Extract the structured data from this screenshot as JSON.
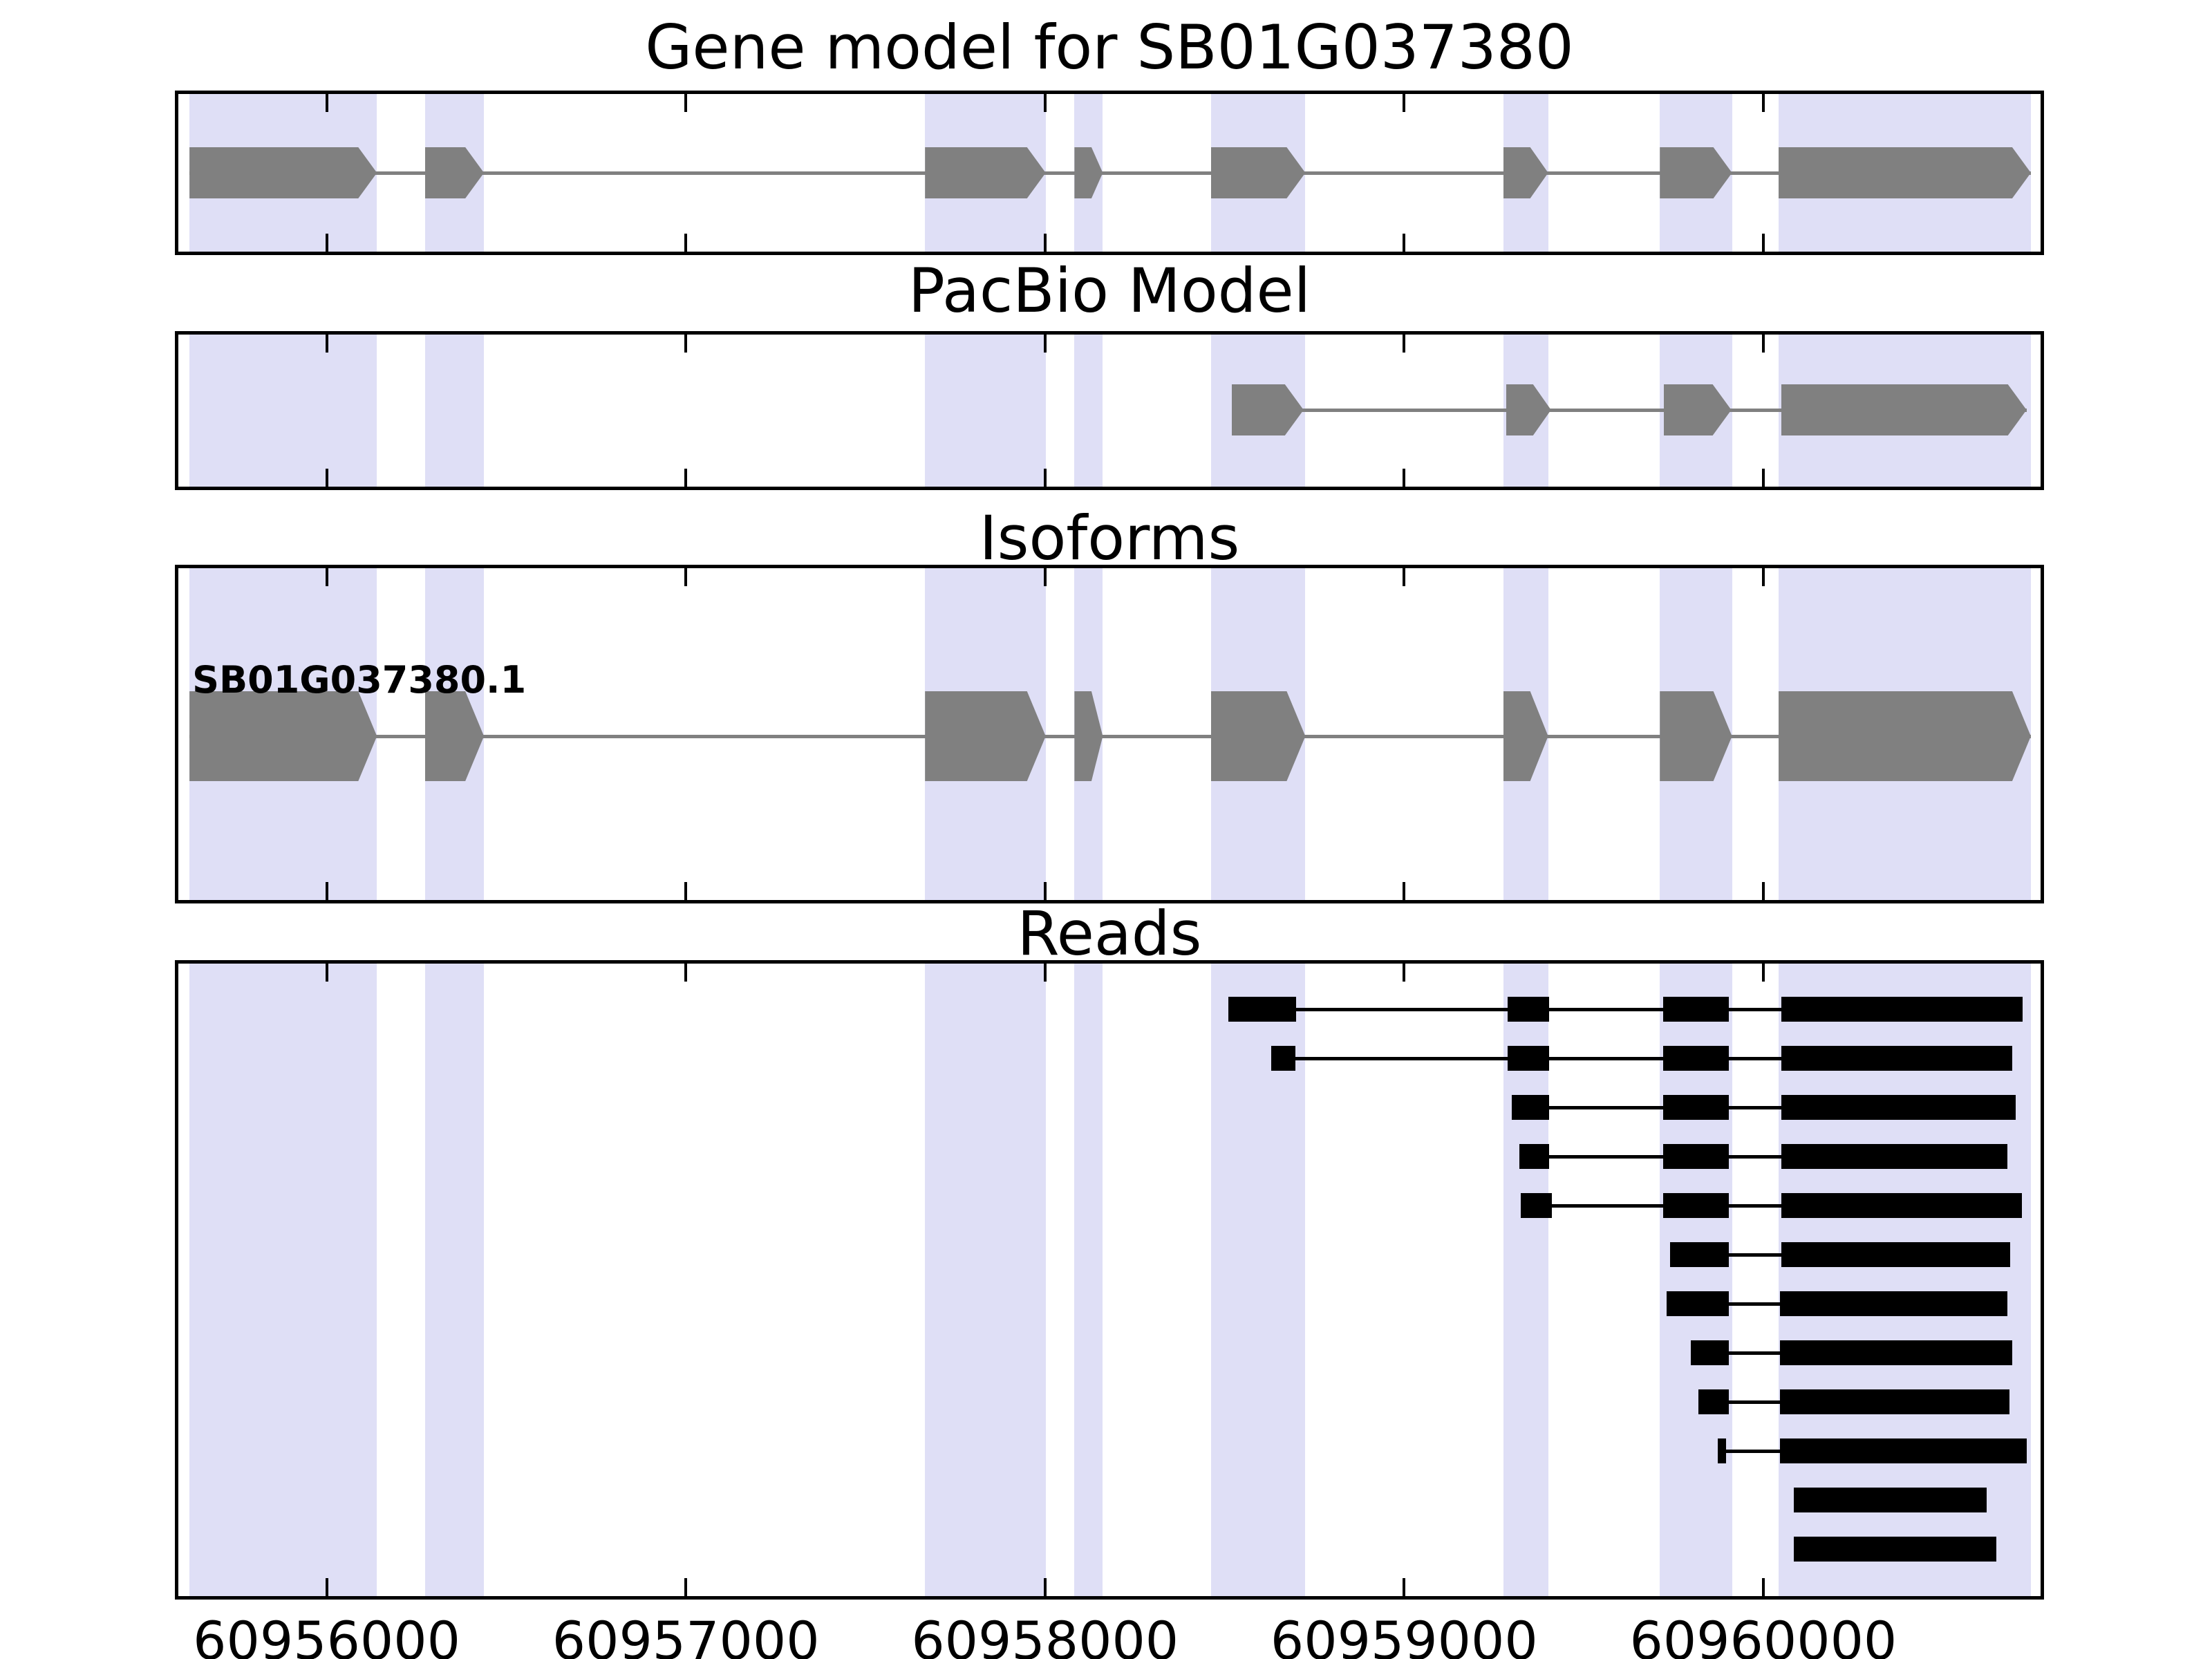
{
  "figure_title": "Gene model for SB01G037380",
  "colors": {
    "background": "#ffffff",
    "highlight_band": "#dfdff6",
    "exon_gray": "#808080",
    "intron_gray": "#808080",
    "read_black": "#000000",
    "axis_black": "#000000"
  },
  "chart_data": {
    "type": "gene-model-tracks",
    "title": "Gene model for SB01G037380",
    "x_axis": {
      "units": "genomic position (bp)",
      "domain": [
        60955587,
        60960772
      ],
      "tick_positions": [
        60956000,
        60957000,
        60958000,
        60959000,
        60960000
      ],
      "tick_labels": [
        "60956000",
        "60957000",
        "60958000",
        "60959000",
        "60960000"
      ],
      "ticks_direction": "in"
    },
    "highlight_regions": [
      [
        60955618,
        60956140
      ],
      [
        60956274,
        60956438
      ],
      [
        60957666,
        60958002
      ],
      [
        60958082,
        60958161
      ],
      [
        60958462,
        60958725
      ],
      [
        60959276,
        60959401
      ],
      [
        60959712,
        60959913
      ],
      [
        60960042,
        60960745
      ]
    ],
    "panels": [
      {
        "title": "Gene model for SB01G037380",
        "kind": "transcript",
        "strand": "+",
        "exons": [
          [
            60955618,
            60956140
          ],
          [
            60956274,
            60956438
          ],
          [
            60957666,
            60958002
          ],
          [
            60958082,
            60958161
          ],
          [
            60958462,
            60958725
          ],
          [
            60959276,
            60959401
          ],
          [
            60959712,
            60959913
          ],
          [
            60960042,
            60960745
          ]
        ]
      },
      {
        "title": "PacBio Model",
        "kind": "transcript",
        "strand": "+",
        "exons": [
          [
            60958520,
            60958720
          ],
          [
            60959284,
            60959409
          ],
          [
            60959723,
            60959911
          ],
          [
            60960050,
            60960733
          ]
        ]
      },
      {
        "title": "Isoforms",
        "kind": "transcript",
        "strand": "+",
        "transcript_label": "SB01G037380.1",
        "exons": [
          [
            60955618,
            60956140
          ],
          [
            60956274,
            60956438
          ],
          [
            60957666,
            60958002
          ],
          [
            60958082,
            60958161
          ],
          [
            60958462,
            60958725
          ],
          [
            60959276,
            60959401
          ],
          [
            60959712,
            60959913
          ],
          [
            60960042,
            60960745
          ]
        ]
      },
      {
        "title": "Reads",
        "kind": "reads",
        "reads": [
          {
            "blocks": [
              [
                60958510,
                60958700
              ],
              [
                60959288,
                60959403
              ],
              [
                60959722,
                60959904
              ],
              [
                60960050,
                60960722
              ]
            ]
          },
          {
            "blocks": [
              [
                60958629,
                60958698
              ],
              [
                60959288,
                60959403
              ],
              [
                60959722,
                60959904
              ],
              [
                60960050,
                60960693
              ]
            ]
          },
          {
            "blocks": [
              [
                60959299,
                60959403
              ],
              [
                60959722,
                60959904
              ],
              [
                60960050,
                60960702
              ]
            ]
          },
          {
            "blocks": [
              [
                60959321,
                60959403
              ],
              [
                60959722,
                60959904
              ],
              [
                60960050,
                60960679
              ]
            ]
          },
          {
            "blocks": [
              [
                60959325,
                60959411
              ],
              [
                60959722,
                60959904
              ],
              [
                60960050,
                60960720
              ]
            ]
          },
          {
            "blocks": [
              [
                60959741,
                60959904
              ],
              [
                60960050,
                60960687
              ]
            ]
          },
          {
            "blocks": [
              [
                60959731,
                60959904
              ],
              [
                60960046,
                60960679
              ]
            ]
          },
          {
            "blocks": [
              [
                60959799,
                60959904
              ],
              [
                60960046,
                60960693
              ]
            ]
          },
          {
            "blocks": [
              [
                60959820,
                60959904
              ],
              [
                60960046,
                60960685
              ]
            ]
          },
          {
            "blocks": [
              [
                60959873,
                60959896
              ],
              [
                60960046,
                60960733
              ]
            ]
          },
          {
            "blocks": [
              [
                60960085,
                60960622
              ]
            ]
          },
          {
            "blocks": [
              [
                60960085,
                60960649
              ]
            ]
          }
        ]
      }
    ]
  }
}
